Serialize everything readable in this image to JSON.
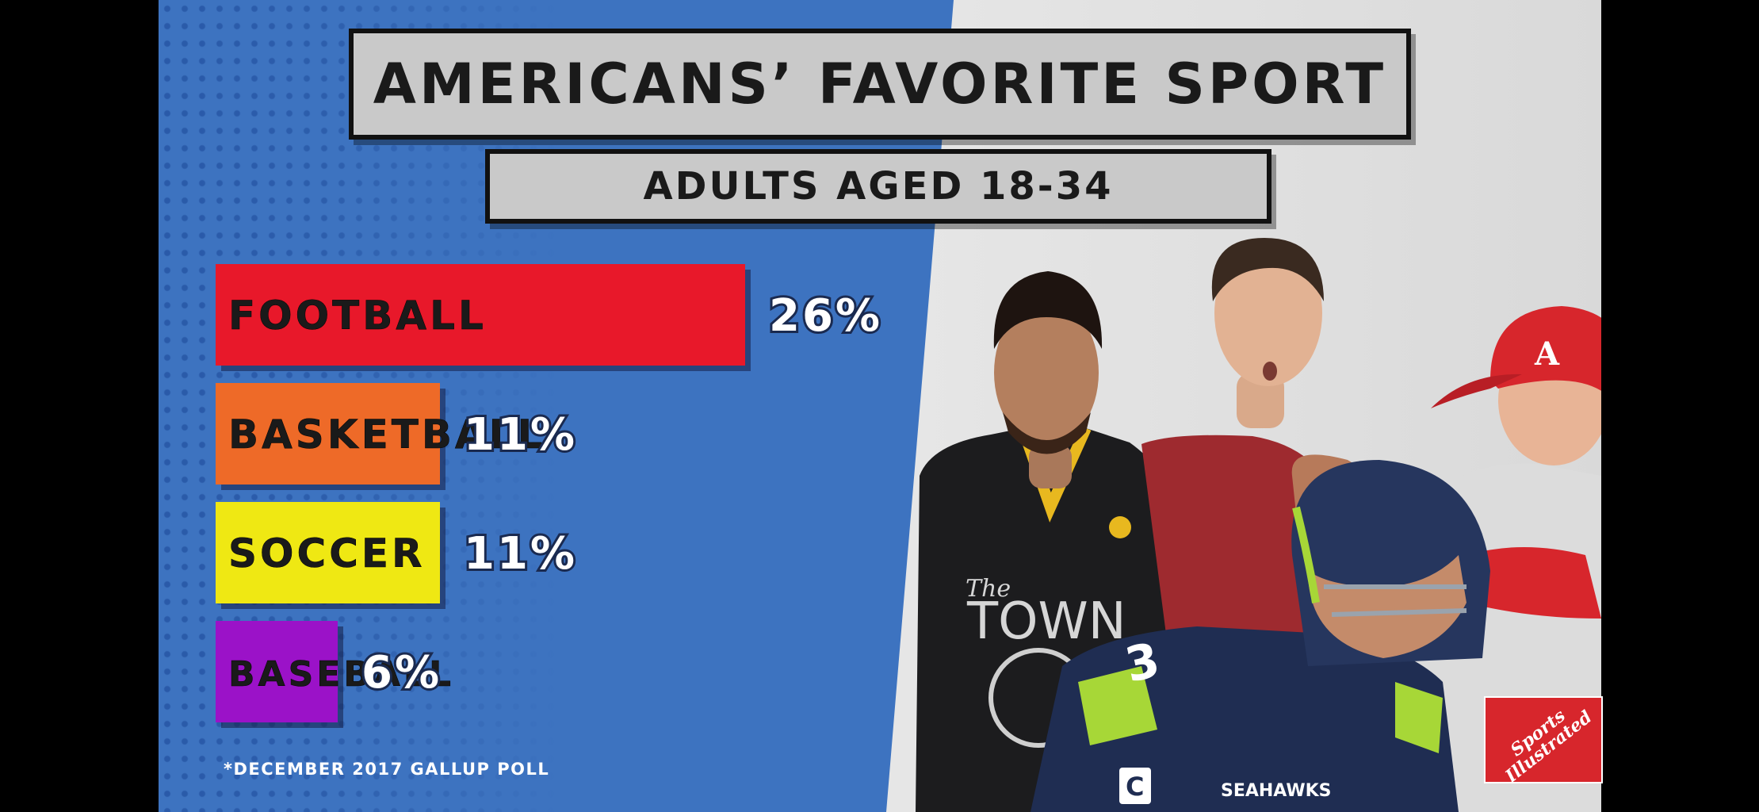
{
  "header": {
    "title": "AMERICANS’ FAVORITE SPORT",
    "subtitle": "ADULTS AGED 18-34"
  },
  "footnote": "*DECEMBER 2017 GALLUP POLL",
  "logo": {
    "line1": "Sports",
    "line2": "Illustrated"
  },
  "colors": {
    "background_blue": "#3d73c0",
    "panel_gray": "#c9c9c9",
    "football": "#e8182a",
    "basketball": "#ee6a28",
    "soccer": "#efe813",
    "baseball": "#9b12c8"
  },
  "chart_data": {
    "type": "bar",
    "orientation": "horizontal",
    "title": "AMERICANS’ FAVORITE SPORT",
    "subtitle": "ADULTS AGED 18-34",
    "categories": [
      "FOOTBALL",
      "BASKETBALL",
      "SOCCER",
      "BASEBALL"
    ],
    "values": [
      26,
      11,
      11,
      6
    ],
    "value_labels": [
      "26%",
      "11%",
      "11%",
      "6%"
    ],
    "unit": "%",
    "bar_colors": [
      "#e8182a",
      "#ee6a28",
      "#efe813",
      "#9b12c8"
    ],
    "xlim": [
      0,
      26
    ]
  },
  "players": [
    {
      "jersey_text": "The",
      "jersey_text2": "TOWN"
    },
    {
      "jersey_number": "3",
      "team_wordmark": "SEAHAWKS",
      "captain_patch": "C"
    },
    {
      "helmet_logo": "A"
    }
  ]
}
